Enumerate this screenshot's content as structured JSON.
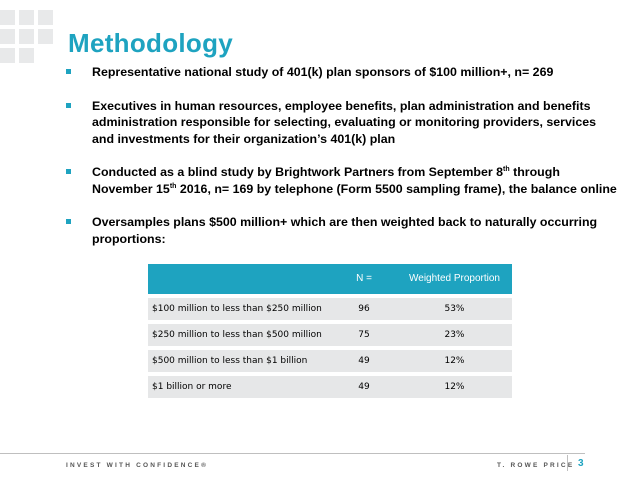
{
  "title": "Methodology",
  "bullets": [
    {
      "text": "Representative national study of 401(k) plan sponsors of $100 million+, n= 269"
    },
    {
      "text": "Executives in human resources, employee benefits, plan administration and benefits administration responsible for selecting, evaluating or monitoring providers, services and investments for their organization’s 401(k) plan"
    },
    {
      "part1": "Conducted as a blind study by Brightwork Partners from September 8",
      "sup1": "th",
      "part2": " through November 15",
      "sup2": "th",
      "part3": "  2016, n= 169 by telephone (Form 5500 sampling frame), the balance online"
    },
    {
      "text": "Oversamples plans $500 million+ which are then weighted  back to naturally occurring proportions:"
    }
  ],
  "table": {
    "headers": [
      "",
      "N =",
      "Weighted Proportion"
    ],
    "rows": [
      {
        "label": "$100 million to less than $250 million",
        "n": "96",
        "pct": "53%"
      },
      {
        "label": "$250 million to less than $500 million",
        "n": "75",
        "pct": "23%"
      },
      {
        "label": "$500 million to less than $1 billion",
        "n": "49",
        "pct": "12%"
      },
      {
        "label": "$1 billion or more",
        "n": "49",
        "pct": "12%"
      }
    ]
  },
  "footer": {
    "tagline": "INVEST WITH CONFIDENCE®",
    "brand": "T. ROWE PRICE",
    "page_number": "3"
  },
  "colors": {
    "accent": "#1ea3c0",
    "row_bg": "#e6e7e8",
    "logo_squares": "#e8e9ea"
  }
}
